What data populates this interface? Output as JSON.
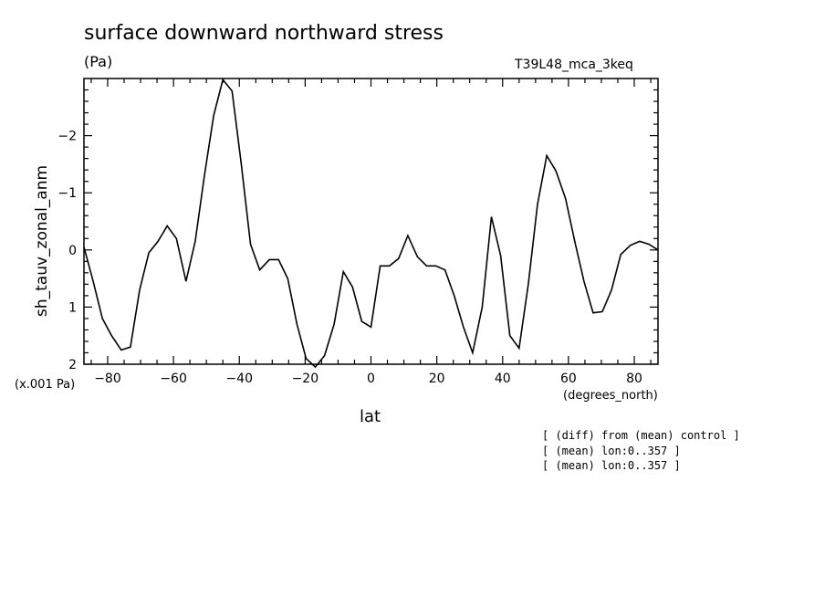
{
  "chart_data": {
    "type": "line",
    "title": "surface downward northward stress",
    "units": "(Pa)",
    "run_label": "T39L48_mca_3keq",
    "xlabel": "lat",
    "x_units": "(degrees_north)",
    "ylabel": "sh_tauv_zonal_anm",
    "y_scale_note": "(x.001 Pa)",
    "xlim": [
      -87.2,
      87.2
    ],
    "ylim": [
      2.0,
      -3.0
    ],
    "y_inverted": true,
    "x_ticks": [
      -80,
      -60,
      -40,
      -20,
      0,
      20,
      40,
      60,
      80
    ],
    "y_ticks": [
      -2,
      -1,
      0,
      1,
      2
    ],
    "grid": false,
    "notes": [
      "[ (diff) from (mean) control ]",
      "[ (mean) lon:0..357 ]",
      "[ (mean) lon:0..357 ]"
    ],
    "series": [
      {
        "x": [
          -87.2,
          -84.4,
          -81.6,
          -78.8,
          -75.9,
          -73.1,
          -70.3,
          -67.5,
          -64.7,
          -61.9,
          -59.1,
          -56.2,
          -53.4,
          -50.6,
          -47.8,
          -45.0,
          -42.2,
          -39.4,
          -36.6,
          -33.8,
          -30.9,
          -28.1,
          -25.3,
          -22.5,
          -19.7,
          -16.9,
          -14.1,
          -11.2,
          -8.4,
          -5.6,
          -2.8,
          0.0,
          2.8,
          5.6,
          8.4,
          11.2,
          14.1,
          16.9,
          19.7,
          22.5,
          25.3,
          28.1,
          30.9,
          33.8,
          36.6,
          39.4,
          42.2,
          45.0,
          47.8,
          50.6,
          53.4,
          56.2,
          59.1,
          61.9,
          64.7,
          67.5,
          70.3,
          73.1,
          75.9,
          78.8,
          81.6,
          84.4,
          87.2
        ],
        "y": [
          -0.05,
          0.55,
          1.2,
          1.5,
          1.75,
          1.7,
          0.7,
          0.05,
          -0.15,
          -0.42,
          -0.2,
          0.55,
          -0.15,
          -1.3,
          -2.35,
          -2.98,
          -2.78,
          -1.5,
          -0.1,
          0.35,
          0.17,
          0.17,
          0.5,
          1.3,
          1.9,
          2.05,
          1.85,
          1.3,
          0.38,
          0.65,
          1.25,
          1.35,
          0.28,
          0.28,
          0.15,
          -0.25,
          0.12,
          0.28,
          0.28,
          0.35,
          0.8,
          1.35,
          1.8,
          1.0,
          -0.58,
          0.1,
          1.5,
          1.72,
          0.6,
          -0.8,
          -1.65,
          -1.38,
          -0.9,
          -0.15,
          0.55,
          1.1,
          1.08,
          0.7,
          0.08,
          -0.08,
          -0.15,
          -0.1,
          0.0
        ]
      }
    ]
  }
}
